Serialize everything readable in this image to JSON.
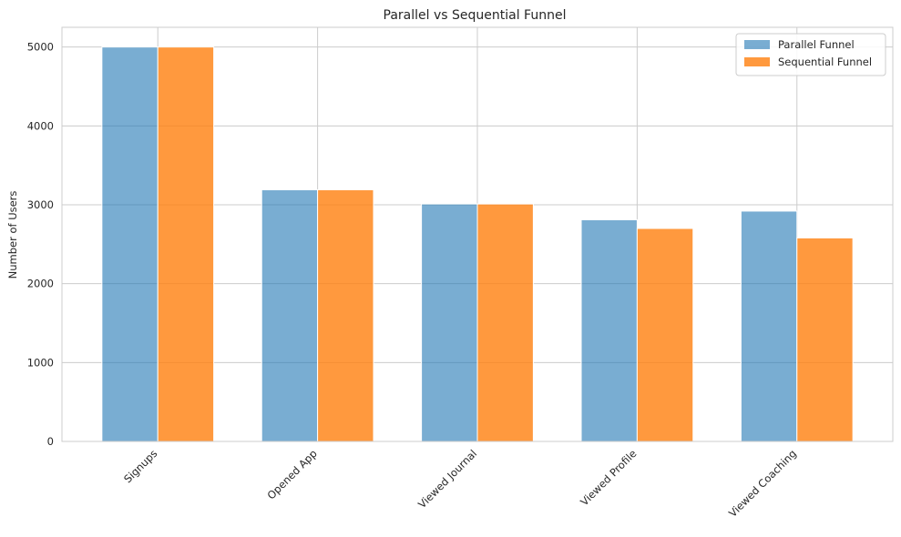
{
  "chart_data": {
    "type": "bar",
    "title": "Parallel vs Sequential Funnel",
    "xlabel": "",
    "ylabel": "Number of Users",
    "categories": [
      "Signups",
      "Opened App",
      "Viewed Journal",
      "Viewed Profile",
      "Viewed Coaching"
    ],
    "series": [
      {
        "name": "Parallel Funnel",
        "values": [
          5000,
          3190,
          3010,
          2810,
          2920
        ],
        "color": "#1f77b4"
      },
      {
        "name": "Sequential Funnel",
        "values": [
          5000,
          3190,
          3010,
          2700,
          2580
        ],
        "color": "#ff7f0e"
      }
    ],
    "ylim": [
      0,
      5250
    ],
    "yticks": [
      "0",
      "1000",
      "2000",
      "3000",
      "4000",
      "5000"
    ],
    "grid": true,
    "legend_position": "top-right"
  }
}
